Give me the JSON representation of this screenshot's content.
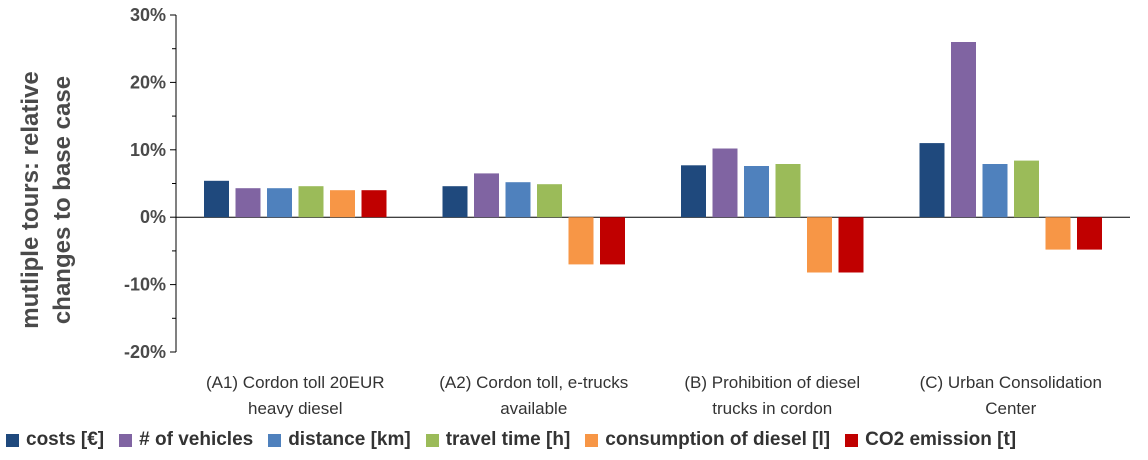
{
  "chart_data": {
    "type": "bar",
    "ylabel_lines": [
      "mutliple tours: relative",
      "changes to base case"
    ],
    "ylim": [
      -20,
      30
    ],
    "yticks": [
      -20,
      -10,
      0,
      10,
      20,
      30
    ],
    "ytick_labels": [
      "-20%",
      "-10%",
      "0%",
      "10%",
      "20%",
      "30%"
    ],
    "grid": false,
    "legend_position": "bottom",
    "categories": [
      [
        "(A1) Cordon toll 20EUR",
        "heavy diesel"
      ],
      [
        "(A2) Cordon toll, e-trucks",
        "available"
      ],
      [
        "(B) Prohibition of diesel",
        "trucks in cordon"
      ],
      [
        "(C) Urban Consolidation",
        "Center"
      ]
    ],
    "series": [
      {
        "name": "costs [€]",
        "color": "#1f497d",
        "values": [
          5.4,
          4.6,
          7.7,
          11.0
        ]
      },
      {
        "name": "# of vehicles",
        "color": "#8064a2",
        "values": [
          4.3,
          6.5,
          10.2,
          26.0
        ]
      },
      {
        "name": "distance [km]",
        "color": "#4f81bd",
        "values": [
          4.3,
          5.2,
          7.6,
          7.9
        ]
      },
      {
        "name": "travel time [h]",
        "color": "#9bbb59",
        "values": [
          4.6,
          4.9,
          7.9,
          8.4
        ]
      },
      {
        "name": "consumption of diesel [l]",
        "color": "#f79646",
        "values": [
          4.0,
          -7.0,
          -8.2,
          -4.8
        ]
      },
      {
        "name": "CO2 emission [t]",
        "color": "#c00000",
        "values": [
          4.0,
          -7.0,
          -8.2,
          -4.8
        ]
      }
    ]
  }
}
